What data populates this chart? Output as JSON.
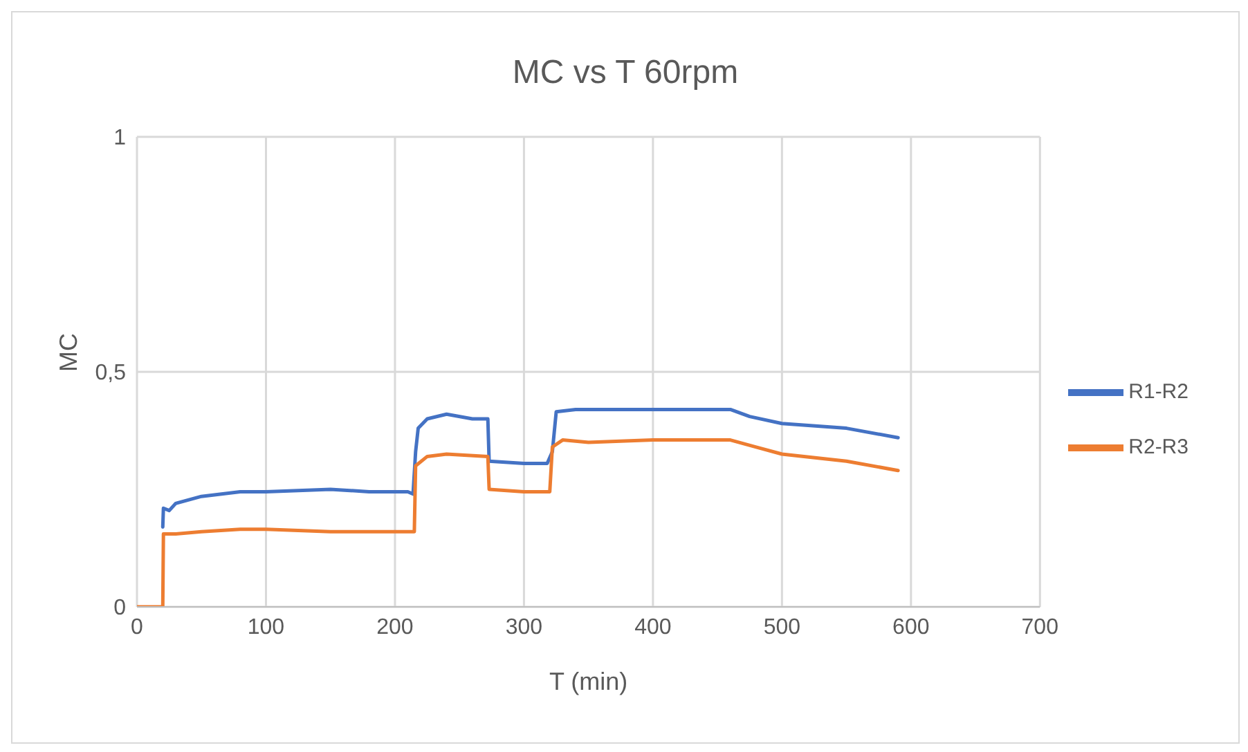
{
  "chart_data": {
    "type": "line",
    "title": "MC vs T 60rpm",
    "xlabel": "T (min)",
    "ylabel": "MC",
    "xlim": [
      0,
      700
    ],
    "xticks": [
      0,
      100,
      200,
      300,
      400,
      500,
      600,
      700
    ],
    "ylim": [
      0,
      1
    ],
    "yticks": [
      {
        "value": 0,
        "label": "0"
      },
      {
        "value": 0.5,
        "label": "0,5"
      },
      {
        "value": 1,
        "label": "1"
      }
    ],
    "grid": true,
    "legend": "right",
    "marker": "none",
    "line_style": "solid",
    "series": [
      {
        "name": "R1-R2",
        "color": "#4472c4",
        "x": [
          20,
          20.5,
          25,
          30,
          50,
          80,
          100,
          150,
          180,
          210,
          214,
          216,
          218,
          225,
          240,
          260,
          272,
          273,
          300,
          318,
          322,
          325,
          340,
          400,
          460,
          475,
          500,
          550,
          590
        ],
        "values": [
          0.17,
          0.21,
          0.205,
          0.22,
          0.235,
          0.245,
          0.245,
          0.25,
          0.245,
          0.245,
          0.24,
          0.33,
          0.38,
          0.4,
          0.41,
          0.4,
          0.4,
          0.31,
          0.305,
          0.305,
          0.33,
          0.415,
          0.42,
          0.42,
          0.42,
          0.405,
          0.39,
          0.38,
          0.36
        ]
      },
      {
        "name": "R2-R3",
        "color": "#ed7d31",
        "x": [
          0,
          20,
          20.5,
          30,
          50,
          80,
          100,
          150,
          215,
          216,
          225,
          240,
          272,
          273,
          300,
          320,
          322,
          330,
          350,
          400,
          460,
          480,
          500,
          550,
          590
        ],
        "values": [
          0,
          0,
          0.155,
          0.155,
          0.16,
          0.165,
          0.165,
          0.16,
          0.16,
          0.3,
          0.32,
          0.325,
          0.32,
          0.25,
          0.245,
          0.245,
          0.34,
          0.355,
          0.35,
          0.355,
          0.355,
          0.34,
          0.325,
          0.31,
          0.29
        ]
      }
    ]
  }
}
